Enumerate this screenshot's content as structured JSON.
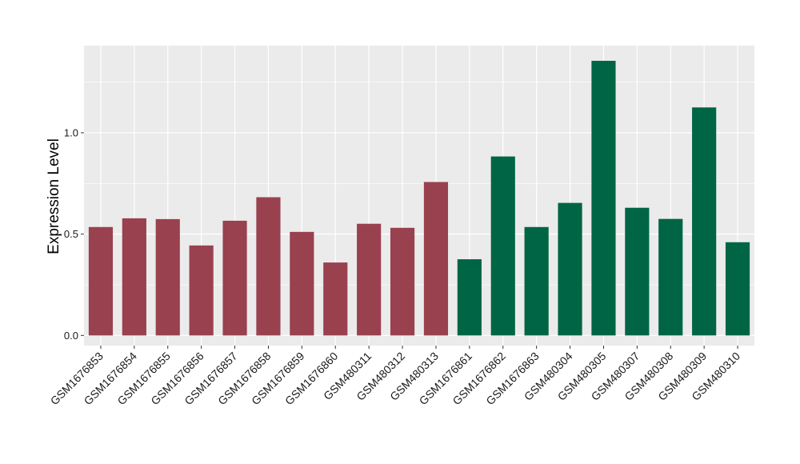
{
  "chart_data": {
    "type": "bar",
    "title": "",
    "xlabel": "",
    "ylabel": "Expression Level",
    "ylim": [
      -0.05,
      1.43
    ],
    "yticks": [
      0.0,
      0.5,
      1.0
    ],
    "ytick_labels": [
      "0.0",
      "0.5",
      "1.0"
    ],
    "grid": true,
    "legend": "none",
    "categories": [
      "GSM1676853",
      "GSM1676854",
      "GSM1676855",
      "GSM1676856",
      "GSM1676857",
      "GSM1676858",
      "GSM1676859",
      "GSM1676860",
      "GSM480311",
      "GSM480312",
      "GSM480313",
      "GSM1676861",
      "GSM1676862",
      "GSM1676863",
      "GSM480304",
      "GSM480305",
      "GSM480307",
      "GSM480308",
      "GSM480309",
      "GSM480310"
    ],
    "values": [
      0.535,
      0.578,
      0.574,
      0.444,
      0.566,
      0.682,
      0.511,
      0.36,
      0.551,
      0.531,
      0.757,
      0.376,
      0.883,
      0.535,
      0.654,
      1.355,
      0.63,
      0.575,
      1.125,
      0.46
    ],
    "group": [
      "a",
      "a",
      "a",
      "a",
      "a",
      "a",
      "a",
      "a",
      "a",
      "a",
      "a",
      "b",
      "b",
      "b",
      "b",
      "b",
      "b",
      "b",
      "b",
      "b"
    ],
    "colors": {
      "a": "#99414f",
      "b": "#006544"
    },
    "panel_background": "#ebebeb",
    "grid_color": "#ffffff"
  }
}
